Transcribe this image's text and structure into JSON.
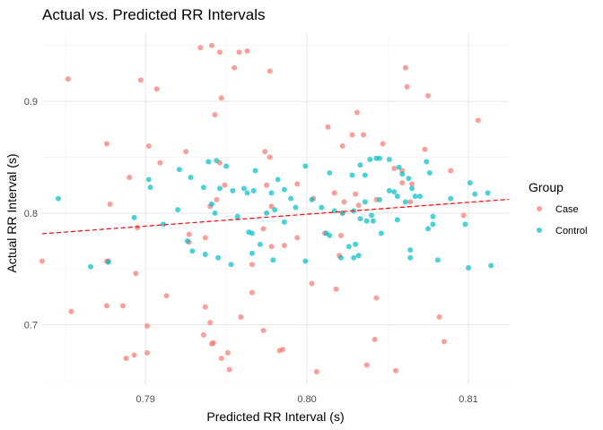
{
  "chart_data": {
    "type": "scatter",
    "title": "Actual vs. Predicted RR Intervals",
    "xlabel": "Predicted RR Interval (s)",
    "ylabel": "Actual RR Interval (s)",
    "xlim": [
      0.7836,
      0.8125
    ],
    "ylim": [
      0.646,
      0.961
    ],
    "x_ticks": [
      0.79,
      0.8,
      0.81
    ],
    "x_tick_labels": [
      "0.79",
      "0.80",
      "0.81"
    ],
    "y_ticks": [
      0.7,
      0.8,
      0.9
    ],
    "y_tick_labels": [
      "0.7",
      "0.8",
      "0.9"
    ],
    "grid": true,
    "legend": {
      "title": "Group",
      "position": "right"
    },
    "reference_line": {
      "style": "dashed",
      "color": "#ff0000",
      "x": [
        0.7836,
        0.8125
      ],
      "y": [
        0.7815,
        0.8123
      ]
    },
    "series": [
      {
        "name": "Case",
        "color": "#F8766D",
        "points": [
          [
            0.7934,
            0.948
          ],
          [
            0.7941,
            0.95
          ],
          [
            0.7946,
            0.944
          ],
          [
            0.7958,
            0.944
          ],
          [
            0.7963,
            0.945
          ],
          [
            0.7955,
            0.93
          ],
          [
            0.7977,
            0.927
          ],
          [
            0.7852,
            0.92
          ],
          [
            0.7897,
            0.919
          ],
          [
            0.7907,
            0.911
          ],
          [
            0.7947,
            0.903
          ],
          [
            0.8061,
            0.93
          ],
          [
            0.8062,
            0.913
          ],
          [
            0.8075,
            0.905
          ],
          [
            0.8106,
            0.883
          ],
          [
            0.8031,
            0.89
          ],
          [
            0.8013,
            0.877
          ],
          [
            0.7943,
            0.888
          ],
          [
            0.7876,
            0.862
          ],
          [
            0.7902,
            0.86
          ],
          [
            0.7925,
            0.855
          ],
          [
            0.7974,
            0.855
          ],
          [
            0.7977,
            0.85
          ],
          [
            0.7946,
            0.845
          ],
          [
            0.7909,
            0.845
          ],
          [
            0.8022,
            0.86
          ],
          [
            0.8028,
            0.87
          ],
          [
            0.8035,
            0.87
          ],
          [
            0.8047,
            0.862
          ],
          [
            0.8054,
            0.84
          ],
          [
            0.8059,
            0.838
          ],
          [
            0.8073,
            0.857
          ],
          [
            0.8089,
            0.838
          ],
          [
            0.7949,
            0.825
          ],
          [
            0.7975,
            0.825
          ],
          [
            0.7994,
            0.826
          ],
          [
            0.8004,
            0.813
          ],
          [
            0.8017,
            0.818
          ],
          [
            0.803,
            0.817
          ],
          [
            0.8059,
            0.827
          ],
          [
            0.8065,
            0.826
          ],
          [
            0.7878,
            0.808
          ],
          [
            0.789,
            0.832
          ],
          [
            0.7944,
            0.812
          ],
          [
            0.794,
            0.806
          ],
          [
            0.7978,
            0.806
          ],
          [
            0.8022,
            0.8
          ],
          [
            0.8032,
            0.807
          ],
          [
            0.8043,
            0.812
          ],
          [
            0.8023,
            0.81
          ],
          [
            0.8064,
            0.81
          ],
          [
            0.8097,
            0.798
          ],
          [
            0.7895,
            0.787
          ],
          [
            0.7927,
            0.781
          ],
          [
            0.7927,
            0.774
          ],
          [
            0.7937,
            0.778
          ],
          [
            0.7973,
            0.786
          ],
          [
            0.7994,
            0.778
          ],
          [
            0.7978,
            0.77
          ],
          [
            0.7986,
            0.771
          ],
          [
            0.8021,
            0.78
          ],
          [
            0.8011,
            0.782
          ],
          [
            0.802,
            0.762
          ],
          [
            0.7966,
            0.754
          ],
          [
            0.7894,
            0.746
          ],
          [
            0.7877,
            0.757
          ],
          [
            0.7913,
            0.726
          ],
          [
            0.7854,
            0.712
          ],
          [
            0.7876,
            0.717
          ],
          [
            0.7886,
            0.717
          ],
          [
            0.7937,
            0.716
          ],
          [
            0.794,
            0.702
          ],
          [
            0.7959,
            0.707
          ],
          [
            0.7966,
            0.729
          ],
          [
            0.8003,
            0.737
          ],
          [
            0.8018,
            0.732
          ],
          [
            0.8043,
            0.724
          ],
          [
            0.7936,
            0.691
          ],
          [
            0.7942,
            0.684
          ],
          [
            0.7941,
            0.683
          ],
          [
            0.7973,
            0.695
          ],
          [
            0.7983,
            0.677
          ],
          [
            0.7985,
            0.678
          ],
          [
            0.7901,
            0.699
          ],
          [
            0.7901,
            0.675
          ],
          [
            0.7888,
            0.67
          ],
          [
            0.7893,
            0.673
          ],
          [
            0.7947,
            0.67
          ],
          [
            0.7951,
            0.675
          ],
          [
            0.7952,
            0.66
          ],
          [
            0.8006,
            0.658
          ],
          [
            0.8037,
            0.664
          ],
          [
            0.8042,
            0.687
          ],
          [
            0.8055,
            0.659
          ],
          [
            0.8082,
            0.707
          ],
          [
            0.8085,
            0.685
          ],
          [
            0.7836,
            0.757
          ],
          [
            0.7876,
            0.757
          ]
        ]
      },
      {
        "name": "Control",
        "color": "#00BFC4",
        "points": [
          [
            0.7846,
            0.813
          ],
          [
            0.7902,
            0.83
          ],
          [
            0.7903,
            0.823
          ],
          [
            0.7921,
            0.839
          ],
          [
            0.7928,
            0.832
          ],
          [
            0.7939,
            0.846
          ],
          [
            0.7944,
            0.847
          ],
          [
            0.795,
            0.842
          ],
          [
            0.7936,
            0.823
          ],
          [
            0.7946,
            0.822
          ],
          [
            0.7954,
            0.82
          ],
          [
            0.7961,
            0.822
          ],
          [
            0.7963,
            0.818
          ],
          [
            0.7967,
            0.82
          ],
          [
            0.7968,
            0.838
          ],
          [
            0.7978,
            0.818
          ],
          [
            0.7982,
            0.83
          ],
          [
            0.7986,
            0.821
          ],
          [
            0.799,
            0.813
          ],
          [
            0.7993,
            0.805
          ],
          [
            0.7999,
            0.842
          ],
          [
            0.8014,
            0.836
          ],
          [
            0.8028,
            0.834
          ],
          [
            0.8033,
            0.843
          ],
          [
            0.8036,
            0.834
          ],
          [
            0.8039,
            0.848
          ],
          [
            0.8043,
            0.849
          ],
          [
            0.8045,
            0.849
          ],
          [
            0.8051,
            0.848
          ],
          [
            0.8057,
            0.841
          ],
          [
            0.8059,
            0.835
          ],
          [
            0.8063,
            0.831
          ],
          [
            0.8065,
            0.822
          ],
          [
            0.8067,
            0.815
          ],
          [
            0.807,
            0.815
          ],
          [
            0.8074,
            0.846
          ],
          [
            0.8076,
            0.836
          ],
          [
            0.8051,
            0.82
          ],
          [
            0.8054,
            0.819
          ],
          [
            0.8056,
            0.815
          ],
          [
            0.8061,
            0.81
          ],
          [
            0.8045,
            0.812
          ],
          [
            0.8036,
            0.81
          ],
          [
            0.8029,
            0.802
          ],
          [
            0.8022,
            0.8
          ],
          [
            0.8017,
            0.802
          ],
          [
            0.8009,
            0.805
          ],
          [
            0.8003,
            0.812
          ],
          [
            0.798,
            0.803
          ],
          [
            0.7975,
            0.8
          ],
          [
            0.7957,
            0.797
          ],
          [
            0.7941,
            0.808
          ],
          [
            0.792,
            0.803
          ],
          [
            0.7893,
            0.796
          ],
          [
            0.7911,
            0.79
          ],
          [
            0.7926,
            0.775
          ],
          [
            0.7929,
            0.766
          ],
          [
            0.7937,
            0.763
          ],
          [
            0.7945,
            0.76
          ],
          [
            0.7953,
            0.754
          ],
          [
            0.7966,
            0.782
          ],
          [
            0.7966,
            0.764
          ],
          [
            0.7971,
            0.772
          ],
          [
            0.7979,
            0.758
          ],
          [
            0.7986,
            0.792
          ],
          [
            0.7999,
            0.757
          ],
          [
            0.8012,
            0.782
          ],
          [
            0.8014,
            0.78
          ],
          [
            0.8021,
            0.76
          ],
          [
            0.8026,
            0.77
          ],
          [
            0.8029,
            0.76
          ],
          [
            0.8032,
            0.762
          ],
          [
            0.8033,
            0.795
          ],
          [
            0.8037,
            0.793
          ],
          [
            0.804,
            0.798
          ],
          [
            0.8041,
            0.793
          ],
          [
            0.8046,
            0.782
          ],
          [
            0.8056,
            0.794
          ],
          [
            0.8064,
            0.767
          ],
          [
            0.8064,
            0.76
          ],
          [
            0.8075,
            0.786
          ],
          [
            0.8078,
            0.79
          ],
          [
            0.8081,
            0.758
          ],
          [
            0.8078,
            0.797
          ],
          [
            0.8089,
            0.813
          ],
          [
            0.8098,
            0.79
          ],
          [
            0.81,
            0.751
          ],
          [
            0.8101,
            0.827
          ],
          [
            0.8104,
            0.817
          ],
          [
            0.8112,
            0.818
          ],
          [
            0.8114,
            0.753
          ],
          [
            0.7866,
            0.752
          ],
          [
            0.7877,
            0.756
          ],
          [
            0.7943,
            0.8
          ],
          [
            0.7964,
            0.783
          ],
          [
            0.803,
            0.772
          ]
        ]
      }
    ]
  }
}
